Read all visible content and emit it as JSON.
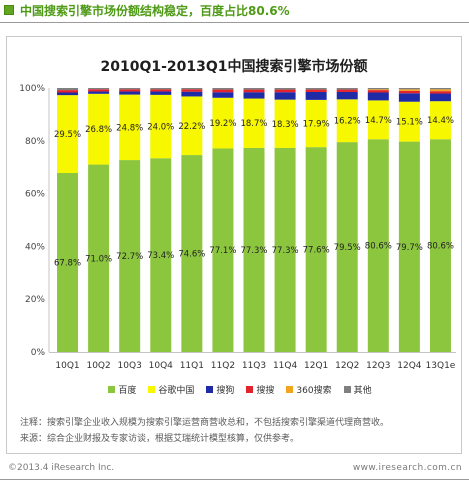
{
  "header": {
    "title": "中国搜索引擎市场份额结构稳定，百度占比80.6%",
    "icon": "green-square-bullet-icon",
    "accent_color": "#4e9a16"
  },
  "chart_data": {
    "type": "bar",
    "stacked": true,
    "title": "2010Q1-2013Q1中国搜索引擎市场份额",
    "xlabel": "",
    "ylabel": "",
    "categories": [
      "10Q1",
      "10Q2",
      "10Q3",
      "10Q4",
      "11Q1",
      "11Q2",
      "11Q3",
      "11Q4",
      "12Q1",
      "12Q2",
      "12Q3",
      "12Q4",
      "13Q1e"
    ],
    "ylim": [
      0,
      100
    ],
    "y_ticks": [
      0,
      20,
      40,
      60,
      80,
      100
    ],
    "y_tick_labels": [
      "0%",
      "20%",
      "40%",
      "60%",
      "80%",
      "100%"
    ],
    "value_suffix": "%",
    "grid": false,
    "legend_position": "bottom",
    "series": [
      {
        "name": "百度",
        "color": "#8cc63f",
        "show_labels": true,
        "values": [
          67.8,
          71.0,
          72.7,
          73.4,
          74.6,
          77.1,
          77.3,
          77.3,
          77.6,
          79.5,
          80.6,
          79.7,
          80.6
        ]
      },
      {
        "name": "谷歌中国",
        "color": "#f7f700",
        "show_labels": true,
        "values": [
          29.5,
          26.8,
          24.8,
          24.0,
          22.2,
          19.2,
          18.7,
          18.3,
          17.9,
          16.2,
          14.7,
          15.1,
          14.4
        ]
      },
      {
        "name": "搜狗",
        "color": "#1f2aa6",
        "show_labels": false,
        "values": [
          1.0,
          0.9,
          1.2,
          1.3,
          1.8,
          2.1,
          2.4,
          2.8,
          3.0,
          2.8,
          3.0,
          3.2,
          2.9
        ]
      },
      {
        "name": "搜搜",
        "color": "#e2232b",
        "show_labels": false,
        "values": [
          0.9,
          0.8,
          0.8,
          0.8,
          0.9,
          1.0,
          1.0,
          1.0,
          0.9,
          0.9,
          0.9,
          0.9,
          0.9
        ]
      },
      {
        "name": "360搜索",
        "color": "#f4a41c",
        "show_labels": false,
        "values": [
          0,
          0,
          0,
          0,
          0,
          0,
          0,
          0,
          0,
          0,
          0.3,
          0.6,
          0.7
        ]
      },
      {
        "name": "其他",
        "color": "#7f7f7f",
        "show_labels": false,
        "values": [
          0.8,
          0.5,
          0.5,
          0.5,
          0.5,
          0.6,
          0.6,
          0.6,
          0.6,
          0.6,
          0.5,
          0.5,
          0.5
        ]
      }
    ]
  },
  "notes": {
    "note": "注释：搜索引擎企业收入规模为搜索引擎运营商营收总和，不包括搜索引擎渠道代理商营收。",
    "source": "来源：综合企业财报及专家访谈，根据艾瑞统计模型核算，仅供参考。"
  },
  "footer": {
    "copyright": "©2013.4 iResearch Inc.",
    "website": "www.iresearch.com.cn"
  }
}
